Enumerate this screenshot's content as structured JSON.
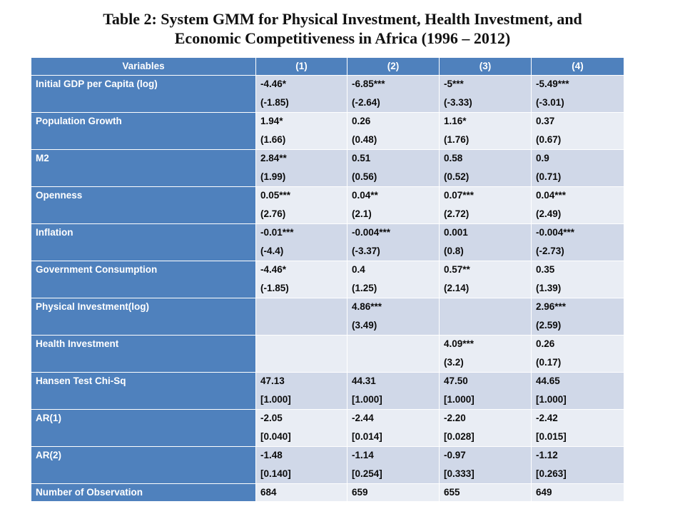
{
  "title": {
    "line1": "Table 2: System GMM for Physical Investment, Health Investment, and",
    "line2": "Economic Competitiveness in Africa (1996 – 2012)"
  },
  "table": {
    "headers": [
      "Variables",
      "(1)",
      "(2)",
      "(3)",
      "(4)"
    ],
    "rows": [
      {
        "label": "Initial GDP per Capita (log)",
        "cells": [
          {
            "coef": "-4.46*",
            "stat": "(-1.85)"
          },
          {
            "coef": "-6.85***",
            "stat": "(-2.64)"
          },
          {
            "coef": "-5***",
            "stat": "(-3.33)"
          },
          {
            "coef": "-5.49***",
            "stat": "(-3.01)"
          }
        ]
      },
      {
        "label": "Population Growth",
        "cells": [
          {
            "coef": "1.94*",
            "stat": "(1.66)"
          },
          {
            "coef": "0.26",
            "stat": "(0.48)"
          },
          {
            "coef": "1.16*",
            "stat": "(1.76)"
          },
          {
            "coef": "0.37",
            "stat": "(0.67)"
          }
        ]
      },
      {
        "label": "M2",
        "cells": [
          {
            "coef": "2.84**",
            "stat": "(1.99)"
          },
          {
            "coef": "0.51",
            "stat": "(0.56)"
          },
          {
            "coef": "0.58",
            "stat": "(0.52)"
          },
          {
            "coef": "0.9",
            "stat": "(0.71)"
          }
        ]
      },
      {
        "label": "Openness",
        "cells": [
          {
            "coef": "0.05***",
            "stat": "(2.76)"
          },
          {
            "coef": "0.04**",
            "stat": "(2.1)"
          },
          {
            "coef": "0.07***",
            "stat": "(2.72)"
          },
          {
            "coef": "0.04***",
            "stat": "(2.49)"
          }
        ]
      },
      {
        "label": " Inflation",
        "cells": [
          {
            "coef": "-0.01***",
            "stat": "(-4.4)"
          },
          {
            "coef": "-0.004***",
            "stat": "(-3.37)"
          },
          {
            "coef": "0.001",
            "stat": "(0.8)"
          },
          {
            "coef": "-0.004***",
            "stat": "(-2.73)"
          }
        ]
      },
      {
        "label": "Government Consumption",
        "cells": [
          {
            "coef": "-4.46*",
            "stat": "(-1.85)"
          },
          {
            "coef": "0.4",
            "stat": "(1.25)"
          },
          {
            "coef": "0.57**",
            "stat": "(2.14)"
          },
          {
            "coef": "0.35",
            "stat": "(1.39)"
          }
        ]
      },
      {
        "label": "Physical Investment(log)",
        "cells": [
          {
            "coef": "",
            "stat": ""
          },
          {
            "coef": "4.86***",
            "stat": "(3.49)"
          },
          {
            "coef": "",
            "stat": ""
          },
          {
            "coef": "2.96***",
            "stat": "(2.59)"
          }
        ]
      },
      {
        "label": "Health Investment",
        "cells": [
          {
            "coef": "",
            "stat": ""
          },
          {
            "coef": "",
            "stat": ""
          },
          {
            "coef": "4.09***",
            "stat": "(3.2)"
          },
          {
            "coef": "0.26",
            "stat": "(0.17)"
          }
        ]
      },
      {
        "label": "Hansen Test Chi-Sq",
        "cells": [
          {
            "coef": "47.13",
            "stat": "[1.000]"
          },
          {
            "coef": "44.31",
            "stat": "[1.000]"
          },
          {
            "coef": "47.50",
            "stat": "[1.000]"
          },
          {
            "coef": "44.65",
            "stat": "[1.000]"
          }
        ]
      },
      {
        "label": "AR(1)",
        "cells": [
          {
            "coef": "-2.05",
            "stat": "[0.040]"
          },
          {
            "coef": "-2.44",
            "stat": "[0.014]"
          },
          {
            "coef": "-2.20",
            "stat": "[0.028]"
          },
          {
            "coef": "-2.42",
            "stat": "[0.015]"
          }
        ]
      },
      {
        "label": "AR(2)",
        "cells": [
          {
            "coef": "-1.48",
            "stat": "[0.140]"
          },
          {
            "coef": "-1.14",
            "stat": "[0.254]"
          },
          {
            "coef": "-0.97",
            "stat": "[0.333]"
          },
          {
            "coef": "-1.12",
            "stat": "[0.263]"
          }
        ]
      }
    ],
    "observations": {
      "label": "Number of Observation",
      "values": [
        "684",
        "659",
        "655",
        "649"
      ]
    }
  }
}
